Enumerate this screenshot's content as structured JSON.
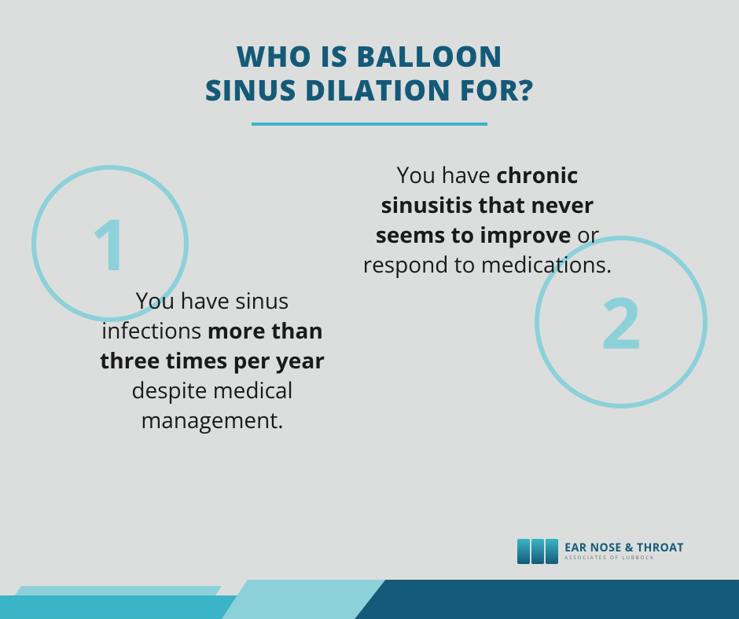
{
  "title": {
    "line1": "WHO IS BALLOON",
    "line2": "SINUS DILATION FOR?"
  },
  "items": [
    {
      "number": "1",
      "text_parts": {
        "pre": "You have sinus infections ",
        "bold": "more than three times per year",
        "post": " despite medical management."
      }
    },
    {
      "number": "2",
      "text_parts": {
        "pre": "You have ",
        "bold": "chronic sinusitis that never seems to improve",
        "post": " or respond to medications."
      }
    }
  ],
  "logo": {
    "main": "EAR NOSE & THROAT",
    "sub": "ASSOCIATES OF LUBBOCK"
  },
  "colors": {
    "background": "#dcdedd",
    "primary": "#145a78",
    "accent": "#3cb4c7",
    "light_accent": "#8cd1da",
    "text": "#1a1a1a"
  },
  "typography": {
    "title_size": 36,
    "body_size": 28,
    "number_size": 90
  }
}
